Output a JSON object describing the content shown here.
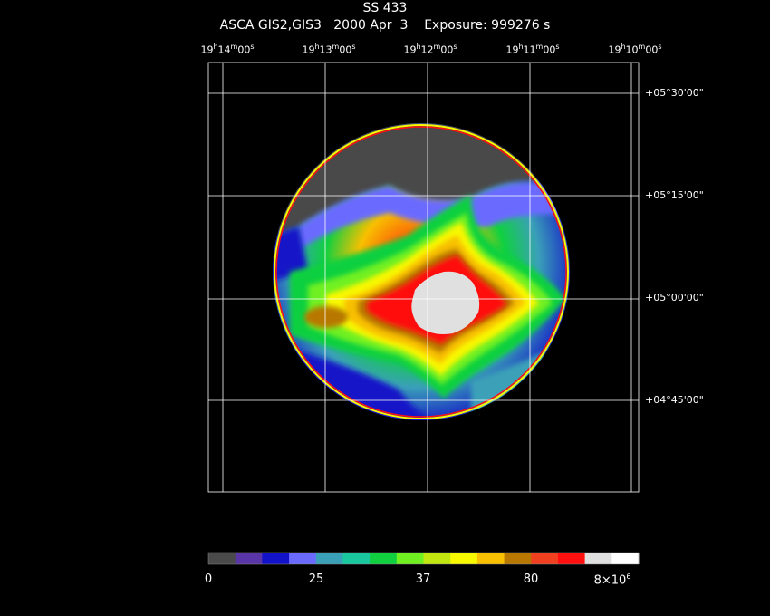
{
  "header": {
    "object": "SS 433",
    "instrument": "ASCA GIS2,GIS3",
    "date": "2000 Apr  3",
    "exposure": "Exposure: 999276 s"
  },
  "ra_ticks": [
    {
      "h": "19",
      "m": "14",
      "s": "00"
    },
    {
      "h": "19",
      "m": "13",
      "s": "00"
    },
    {
      "h": "19",
      "m": "12",
      "s": "00"
    },
    {
      "h": "19",
      "m": "11",
      "s": "00"
    },
    {
      "h": "19",
      "m": "10",
      "s": "00"
    }
  ],
  "dec_ticks": [
    "+05°30'00\"",
    "+05°15'00\"",
    "+05°00'00\"",
    "+04°45'00\""
  ],
  "colorbar": {
    "colors": [
      "#4a4a4a",
      "#5a35a8",
      "#1212c8",
      "#6a6aff",
      "#3aa0b8",
      "#1ac8a0",
      "#10d040",
      "#70f020",
      "#c0e810",
      "#f8f800",
      "#f8c000",
      "#b87800",
      "#f04020",
      "#ff1010",
      "#e0e0e0",
      "#ffffff"
    ],
    "labels": [
      "0",
      "25",
      "37",
      "80",
      "8×10"
    ],
    "exponent": "6"
  }
}
